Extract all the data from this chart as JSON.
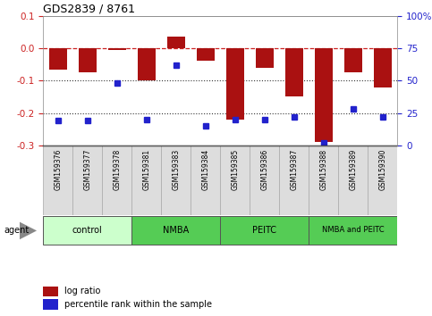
{
  "title": "GDS2839 / 8761",
  "samples": [
    "GSM159376",
    "GSM159377",
    "GSM159378",
    "GSM159381",
    "GSM159383",
    "GSM159384",
    "GSM159385",
    "GSM159386",
    "GSM159387",
    "GSM159388",
    "GSM159389",
    "GSM159390"
  ],
  "log_ratio": [
    -0.065,
    -0.075,
    -0.005,
    -0.1,
    0.035,
    -0.04,
    -0.22,
    -0.06,
    -0.15,
    -0.29,
    -0.075,
    -0.12
  ],
  "percentile_rank": [
    19,
    19,
    48,
    20,
    62,
    15,
    20,
    20,
    22,
    2,
    28,
    22
  ],
  "groups": [
    {
      "label": "control",
      "start": 0,
      "end": 3
    },
    {
      "label": "NMBA",
      "start": 3,
      "end": 6
    },
    {
      "label": "PEITC",
      "start": 6,
      "end": 9
    },
    {
      "label": "NMBA and PEITC",
      "start": 9,
      "end": 12
    }
  ],
  "group_colors": [
    "#ccffcc",
    "#55cc55",
    "#55cc55",
    "#55cc55"
  ],
  "bar_color": "#aa1111",
  "dot_color": "#2222cc",
  "ylim_left": [
    -0.3,
    0.1
  ],
  "ylim_right": [
    0,
    100
  ],
  "yticks_left": [
    -0.3,
    -0.2,
    -0.1,
    0.0,
    0.1
  ],
  "yticks_right": [
    0,
    25,
    50,
    75,
    100
  ],
  "hline_zero_color": "#cc2222",
  "hline_dotted_color": "#333333",
  "background_color": "#ffffff",
  "plot_bg_color": "#ffffff"
}
